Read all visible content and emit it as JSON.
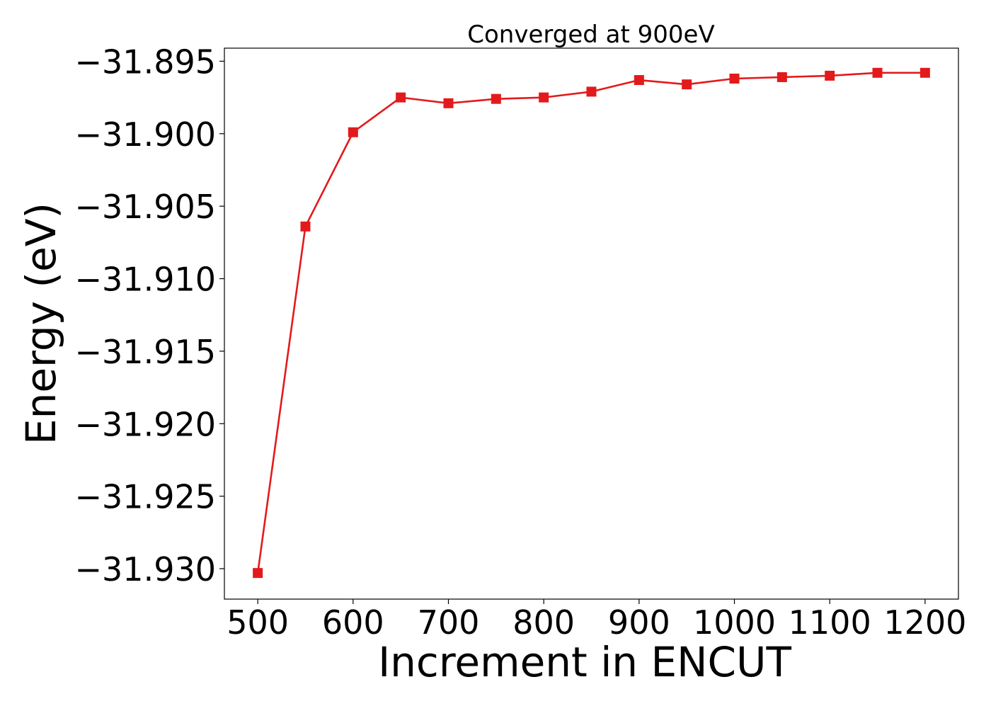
{
  "chart_data": {
    "type": "line",
    "title": "Converged at 900eV",
    "xlabel": "Increment in ENCUT",
    "ylabel": "Energy (eV)",
    "xlim": [
      465,
      1235
    ],
    "ylim": [
      -31.9321,
      -31.8941
    ],
    "xticks": [
      500,
      600,
      700,
      800,
      900,
      1000,
      1100,
      1200
    ],
    "xtick_labels": [
      "500",
      "600",
      "700",
      "800",
      "900",
      "1000",
      "1100",
      "1200"
    ],
    "yticks": [
      -31.895,
      -31.9,
      -31.905,
      -31.91,
      -31.915,
      -31.92,
      -31.925,
      -31.93
    ],
    "ytick_labels": [
      "−31.895",
      "−31.900",
      "−31.905",
      "−31.910",
      "−31.915",
      "−31.920",
      "−31.925",
      "−31.930"
    ],
    "grid": false,
    "series": [
      {
        "color": "#e31a1c",
        "marker": "square",
        "x": [
          500,
          550,
          600,
          650,
          700,
          750,
          800,
          850,
          900,
          950,
          1000,
          1050,
          1100,
          1150,
          1200
        ],
        "y": [
          -31.9303,
          -31.9064,
          -31.8999,
          -31.8975,
          -31.8979,
          -31.8976,
          -31.8975,
          -31.8971,
          -31.8963,
          -31.8966,
          -31.8962,
          -31.8961,
          -31.896,
          -31.8958,
          -31.8958
        ]
      }
    ]
  }
}
